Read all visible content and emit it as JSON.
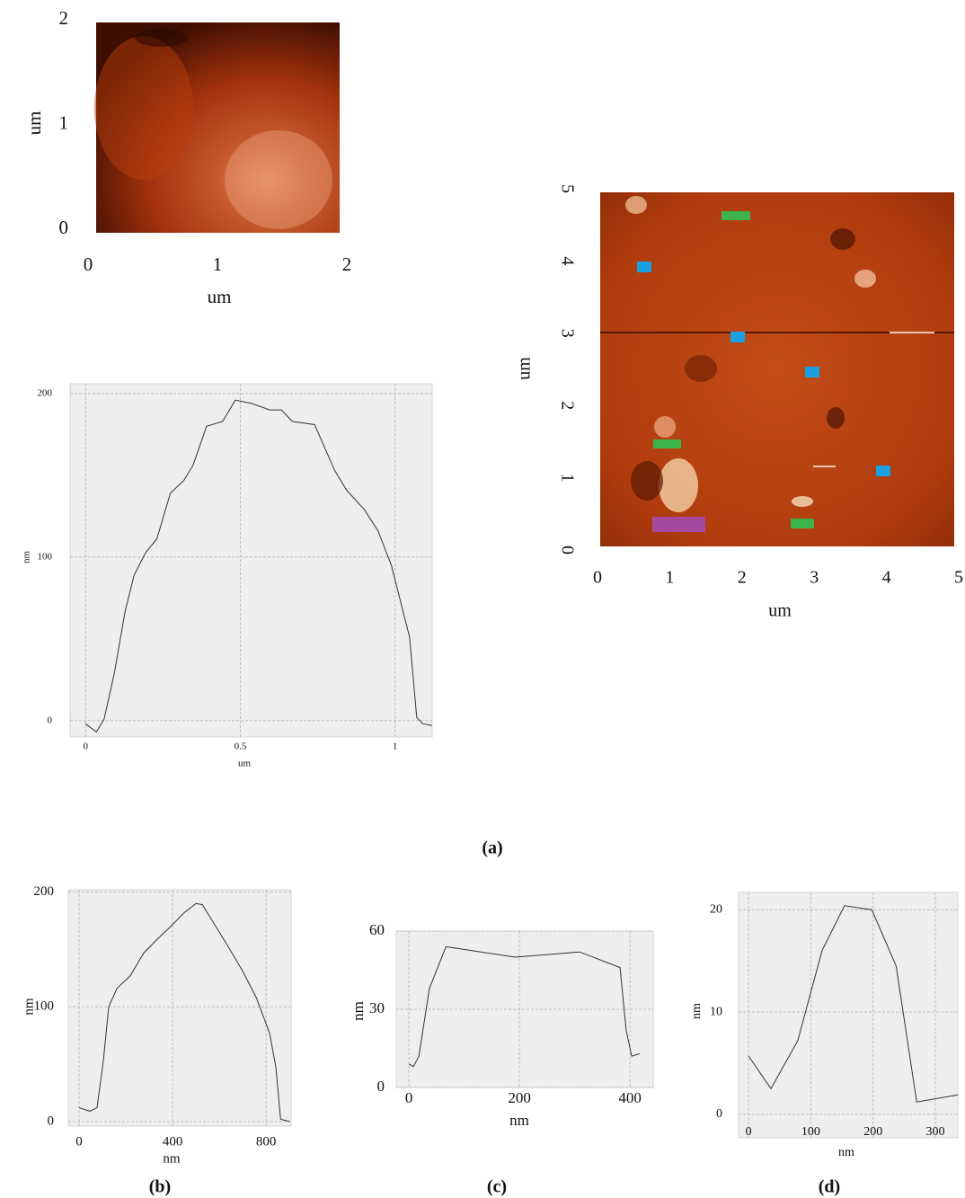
{
  "chart_data": [
    {
      "type": "image",
      "xlabel": "um",
      "ylabel": "um",
      "xlim": [
        0,
        2
      ],
      "ylim": [
        0,
        2
      ],
      "xticks": [
        0,
        1,
        2
      ],
      "yticks": [
        0,
        1,
        2
      ],
      "grid": false
    },
    {
      "type": "line",
      "xlabel": "um",
      "ylabel": "nm",
      "caption": "(a)",
      "color": "#333333",
      "grid": true,
      "xlim": [
        -0.05,
        1.12
      ],
      "ylim": [
        -10,
        206
      ],
      "xticks": [
        0,
        0.5,
        1
      ],
      "yticks": [
        0,
        100,
        200
      ],
      "x": [
        0,
        0.035,
        0.06,
        0.093,
        0.128,
        0.157,
        0.195,
        0.23,
        0.274,
        0.318,
        0.347,
        0.391,
        0.443,
        0.484,
        0.536,
        0.595,
        0.633,
        0.668,
        0.74,
        0.805,
        0.843,
        0.901,
        0.945,
        0.988,
        1.047,
        1.07,
        1.09,
        1.12
      ],
      "values": [
        -2,
        -7,
        1,
        29,
        67,
        89,
        103,
        111,
        139,
        147,
        156,
        180,
        183,
        196,
        194,
        190,
        190,
        183,
        181,
        153,
        141,
        129,
        116,
        95,
        51,
        2,
        -2,
        -3
      ]
    },
    {
      "type": "image",
      "xlabel": "um",
      "ylabel": "um",
      "xlim": [
        0,
        5
      ],
      "ylim": [
        0,
        5
      ],
      "xticks": [
        0,
        1,
        2,
        3,
        4,
        5
      ],
      "yticks": [
        0,
        1,
        2,
        3,
        4,
        5
      ],
      "grid": false
    },
    {
      "type": "line",
      "xlabel": "nm",
      "ylabel": "nm",
      "caption": "(b)",
      "color": "#333333",
      "grid": true,
      "xlim": [
        -46,
        907
      ],
      "ylim": [
        -4,
        202
      ],
      "xticks": [
        0,
        400,
        800
      ],
      "yticks": [
        0,
        100,
        200
      ],
      "x": [
        0,
        46,
        77,
        104,
        127,
        162,
        219,
        277,
        335,
        392,
        450,
        500,
        527,
        585,
        642,
        700,
        758,
        815,
        842,
        862,
        900
      ],
      "values": [
        12,
        9,
        12,
        53,
        100,
        116,
        127,
        147,
        159,
        170,
        182,
        190,
        189,
        170,
        151,
        131,
        108,
        77,
        47,
        2,
        0
      ]
    },
    {
      "type": "line",
      "xlabel": "nm",
      "ylabel": "nm",
      "caption": "(c)",
      "color": "#333333",
      "grid": true,
      "xlim": [
        -23,
        442
      ],
      "ylim": [
        0,
        60
      ],
      "xticks": [
        0,
        200,
        400
      ],
      "yticks": [
        0,
        30,
        60
      ],
      "x": [
        0,
        8,
        18,
        37,
        52,
        67,
        192,
        309,
        382,
        393,
        403,
        418
      ],
      "values": [
        9,
        8,
        12,
        38,
        46,
        54,
        50,
        52,
        46,
        22,
        12,
        13
      ]
    },
    {
      "type": "line",
      "xlabel": "nm",
      "ylabel": "nm",
      "caption": "(d)",
      "color": "#333333",
      "grid": true,
      "xlim": [
        -16,
        336
      ],
      "ylim": [
        -2.3,
        21.7
      ],
      "xticks": [
        0,
        100,
        200,
        300
      ],
      "yticks": [
        0,
        10,
        20
      ],
      "x": [
        0,
        36,
        79,
        118,
        154,
        198,
        237,
        270,
        336
      ],
      "values": [
        5.7,
        2.5,
        7.2,
        16,
        20.4,
        20,
        14.5,
        1.2,
        1.9
      ]
    }
  ]
}
